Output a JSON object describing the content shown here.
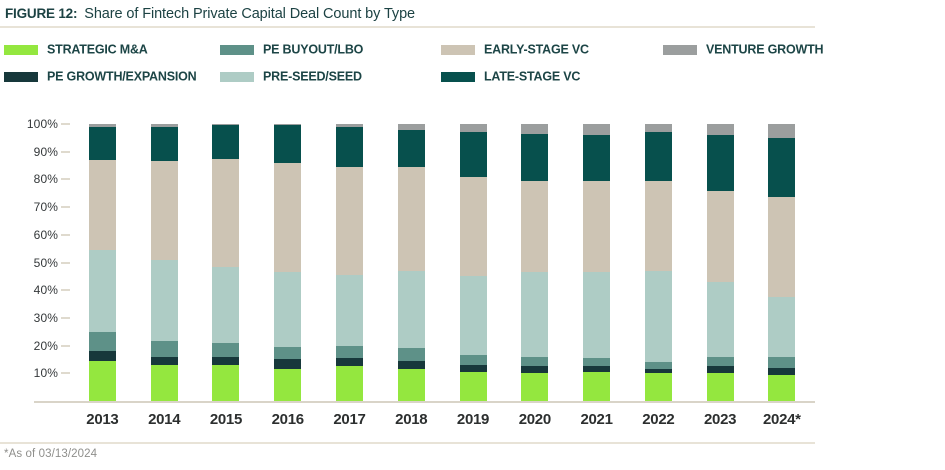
{
  "figure": {
    "label": "FIGURE 12:",
    "title": "Share of Fintech Private Capital Deal Count by Type"
  },
  "legend": [
    {
      "label": "STRATEGIC M&A",
      "key": "strategic_ma",
      "color": "#94e73f"
    },
    {
      "label": "PE BUYOUT/LBO",
      "key": "pe_buyout",
      "color": "#5e9188"
    },
    {
      "label": "EARLY-STAGE VC",
      "key": "early_vc",
      "color": "#cdc4b4"
    },
    {
      "label": "VENTURE GROWTH",
      "key": "venture_growth",
      "color": "#9b9e9e"
    },
    {
      "label": "PE GROWTH/EXPANSION",
      "key": "pe_growth",
      "color": "#17383b"
    },
    {
      "label": "PRE-SEED/SEED",
      "key": "pre_seed",
      "color": "#aeccc5"
    },
    {
      "label": "LATE-STAGE VC",
      "key": "late_vc",
      "color": "#07504d"
    }
  ],
  "chart_data": {
    "type": "bar",
    "stacked": true,
    "unit": "percent share of deal count",
    "title": "Share of Fintech Private Capital Deal Count by Type",
    "xlabel": "",
    "ylabel": "",
    "ylim": [
      0,
      100
    ],
    "grid": false,
    "legend_position": "top",
    "yticks": [
      "10%",
      "20%",
      "30%",
      "40%",
      "50%",
      "60%",
      "70%",
      "80%",
      "90%",
      "100%"
    ],
    "categories": [
      "2013",
      "2014",
      "2015",
      "2016",
      "2017",
      "2018",
      "2019",
      "2020",
      "2021",
      "2022",
      "2023",
      "2024*"
    ],
    "series_order_note": "bottom-to-top stacking order",
    "series": [
      {
        "name": "Strategic M&A",
        "key": "strategic_ma",
        "color": "#94e73f",
        "values": [
          14.5,
          13,
          13,
          11.5,
          12.5,
          11.5,
          10.5,
          10,
          10.5,
          10,
          10,
          9.5
        ]
      },
      {
        "name": "PE Growth/Expansion",
        "key": "pe_growth",
        "color": "#17383b",
        "values": [
          3.5,
          3,
          3,
          3.5,
          3,
          3,
          2.5,
          2.5,
          2,
          1.5,
          2.5,
          2.5
        ]
      },
      {
        "name": "PE Buyout/LBO",
        "key": "pe_buyout",
        "color": "#5e9188",
        "values": [
          7,
          5.5,
          5,
          4.5,
          4.5,
          4.5,
          3.5,
          3.5,
          3,
          2.5,
          3.5,
          4
        ]
      },
      {
        "name": "Pre-Seed/Seed",
        "key": "pre_seed",
        "color": "#aeccc5",
        "values": [
          29.5,
          29.5,
          27.5,
          27,
          25.5,
          28,
          28.5,
          30.5,
          31,
          33,
          27,
          21.5
        ]
      },
      {
        "name": "Early-Stage VC",
        "key": "early_vc",
        "color": "#cdc4b4",
        "values": [
          32.5,
          35.5,
          39,
          39.5,
          39,
          37.5,
          36,
          33,
          33,
          32.5,
          33,
          36
        ]
      },
      {
        "name": "Late-Stage VC",
        "key": "late_vc",
        "color": "#07504d",
        "values": [
          12,
          12.5,
          12,
          13.5,
          14.5,
          13.5,
          16,
          17,
          16.5,
          17.5,
          20,
          21.5
        ]
      },
      {
        "name": "Venture Growth",
        "key": "venture_growth",
        "color": "#9b9e9e",
        "values": [
          1,
          1,
          0.5,
          0.5,
          1,
          2,
          3,
          3.5,
          4,
          3,
          4,
          5
        ]
      }
    ]
  },
  "footnote": "*As of 03/13/2024"
}
